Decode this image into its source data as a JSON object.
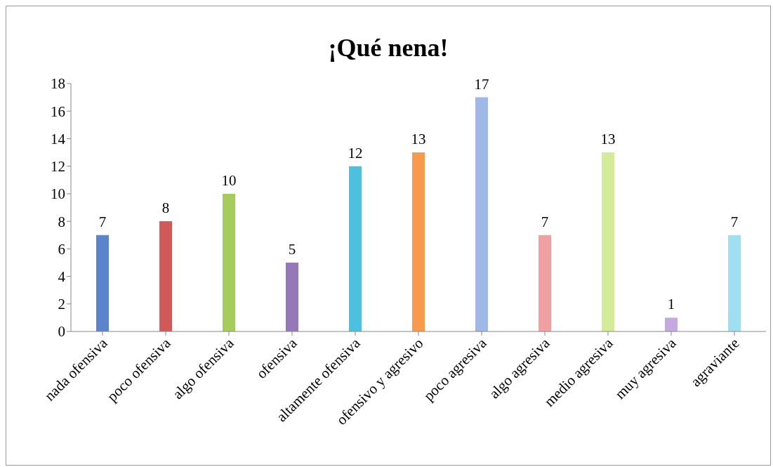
{
  "chart_data": {
    "type": "bar",
    "title": "¡Qué nena!",
    "categories": [
      "nada ofensiva",
      "poco ofensiva",
      "algo ofensiva",
      "ofensiva",
      "altamente ofensiva",
      "ofensivo y agresivo",
      "poco agresiva",
      "algo agresiva",
      "medio agresiva",
      "muy agresiva",
      "agraviante"
    ],
    "values": [
      7,
      8,
      10,
      5,
      12,
      13,
      17,
      7,
      13,
      1,
      7
    ],
    "colors": [
      "#5b84cc",
      "#d05a5a",
      "#a6cc5e",
      "#9478b8",
      "#4cc0de",
      "#f79a4e",
      "#9fb8e8",
      "#f0a0a0",
      "#d4ec9a",
      "#c3a9df",
      "#9fdff0"
    ],
    "ylim": [
      0,
      18
    ],
    "yticks": [
      0,
      2,
      4,
      6,
      8,
      10,
      12,
      14,
      16,
      18
    ],
    "grid": false,
    "legend": false,
    "data_labels": true
  }
}
